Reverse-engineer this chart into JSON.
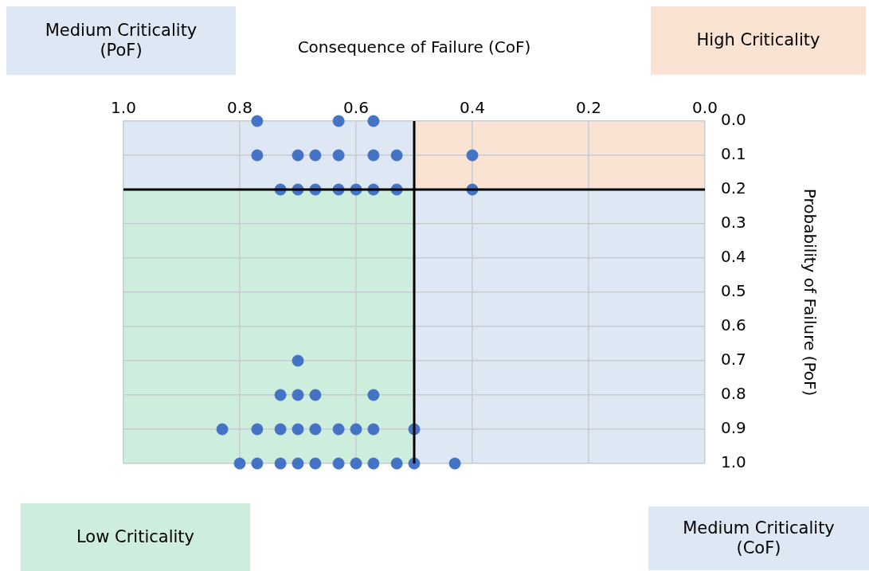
{
  "chart_data": {
    "type": "scatter",
    "xlabel": "Consequence of Failure (CoF)",
    "ylabel": "Probability of Failure (PoF)",
    "annotations": [
      "Medium Criticality (PoF)",
      "High Criticality",
      "Low Criticality",
      "Medium Criticality (CoF)"
    ],
    "series": [
      {
        "color": "#4472c4",
        "x": [
          0.77,
          0.63,
          0.57,
          0.77,
          0.7,
          0.67,
          0.63,
          0.57,
          0.53,
          0.4,
          0.73,
          0.7,
          0.67,
          0.63,
          0.6,
          0.57,
          0.53,
          0.4,
          0.7,
          0.73,
          0.7,
          0.67,
          0.57,
          0.83,
          0.77,
          0.73,
          0.7,
          0.67,
          0.63,
          0.6,
          0.57,
          0.5,
          0.8,
          0.77,
          0.73,
          0.7,
          0.67,
          0.63,
          0.6,
          0.57,
          0.53,
          0.5,
          0.43
        ],
        "values": [
          0,
          0,
          0,
          0.1,
          0.1,
          0.1,
          0.1,
          0.1,
          0.1,
          0.1,
          0.2,
          0.2,
          0.2,
          0.2,
          0.2,
          0.2,
          0.2,
          0.2,
          0.7,
          0.8,
          0.8,
          0.8,
          0.8,
          0.9,
          0.9,
          0.9,
          0.9,
          0.9,
          0.9,
          0.9,
          0.9,
          0.9,
          1,
          1,
          1,
          1,
          1,
          1,
          1,
          1,
          1,
          1,
          1
        ]
      }
    ],
    "xlim": [
      1,
      0
    ],
    "xticks": [
      {
        "value": 1,
        "label": "1.0"
      },
      {
        "value": 0.8,
        "label": "0.8"
      },
      {
        "value": 0.6,
        "label": "0.6"
      },
      {
        "value": 0.4,
        "label": "0.4"
      },
      {
        "value": 0.2,
        "label": "0.2"
      },
      {
        "value": 0,
        "label": "0.0"
      }
    ],
    "ylim": [
      1,
      0
    ],
    "yticks": [
      {
        "value": 0,
        "label": "0.0"
      },
      {
        "value": 0.1,
        "label": "0.1"
      },
      {
        "value": 0.2,
        "label": "0.2"
      },
      {
        "value": 0.3,
        "label": "0.3"
      },
      {
        "value": 0.4,
        "label": "0.4"
      },
      {
        "value": 0.5,
        "label": "0.5"
      },
      {
        "value": 0.6,
        "label": "0.6"
      },
      {
        "value": 0.7,
        "label": "0.7"
      },
      {
        "value": 0.8,
        "label": "0.8"
      },
      {
        "value": 0.9,
        "label": "0.9"
      },
      {
        "value": 1,
        "label": "1.0"
      }
    ],
    "ref_lines": [
      {
        "axis": "x",
        "value": 0.5,
        "color": "#000000"
      },
      {
        "axis": "y",
        "value": 0.2,
        "color": "#000000"
      }
    ],
    "grid": true,
    "marker": "circle",
    "legend": false
  }
}
